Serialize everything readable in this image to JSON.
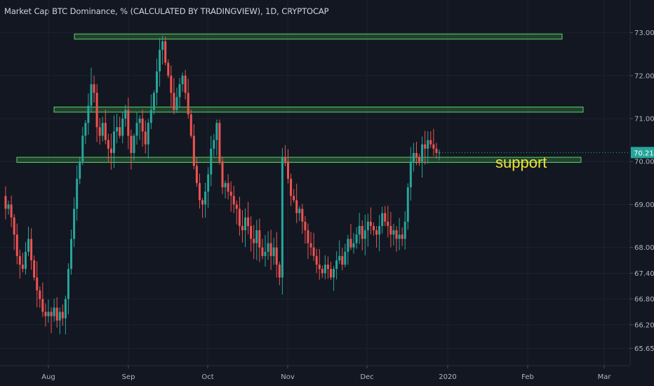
{
  "chart_title": "Market Cap BTC Dominance, % (CALCULATED BY TRADINGVIEW), 1D, CRYPTOCAP",
  "chart_data": {
    "type": "candlestick",
    "title": "Market Cap BTC Dominance, % (CALCULATED BY TRADINGVIEW), 1D, CRYPTOCAP",
    "y_tick_labels": [
      "73.00",
      "72.00",
      "71.00",
      "70.00",
      "69.00",
      "68.00",
      "67.40",
      "66.80",
      "66.20",
      "65.65"
    ],
    "x_tick_labels": [
      "Aug",
      "Sep",
      "Oct",
      "Nov",
      "Dec",
      "2020",
      "Feb",
      "Mar"
    ],
    "current_price": "70.21",
    "ylim": [
      65.55,
      73.45
    ],
    "colors": {
      "up": "#26a69a",
      "down": "#ef5350",
      "zone_fill": "#4caf50",
      "zone_stroke": "#56d364",
      "annotation": "#f0e130",
      "background": "#131722"
    },
    "candles_close": [
      68.9,
      69.0,
      68.7,
      68.3,
      67.8,
      67.6,
      67.5,
      67.9,
      68.2,
      67.7,
      67.3,
      67.0,
      66.8,
      66.5,
      66.4,
      66.5,
      66.4,
      66.6,
      66.3,
      66.5,
      66.35,
      66.8,
      67.5,
      68.2,
      68.9,
      69.6,
      70.0,
      70.6,
      70.9,
      71.3,
      71.8,
      71.6,
      70.8,
      70.6,
      70.9,
      70.5,
      70.3,
      70.2,
      70.7,
      70.8,
      70.6,
      71.0,
      71.2,
      70.6,
      70.2,
      70.6,
      70.9,
      71.0,
      70.7,
      70.4,
      70.9,
      71.2,
      71.6,
      72.1,
      72.6,
      72.8,
      72.3,
      72.0,
      71.6,
      71.2,
      71.5,
      71.8,
      72.0,
      71.6,
      71.1,
      70.6,
      69.9,
      69.5,
      69.1,
      69.0,
      69.3,
      69.7,
      70.3,
      70.5,
      70.9,
      70.0,
      69.4,
      69.5,
      69.3,
      69.2,
      69.0,
      68.9,
      68.5,
      68.4,
      68.7,
      68.5,
      68.2,
      68.1,
      68.4,
      68.0,
      67.8,
      67.9,
      68.1,
      67.8,
      68.0,
      67.6,
      67.3,
      70.1,
      70.0,
      69.6,
      69.2,
      69.1,
      68.8,
      68.9,
      68.6,
      68.4,
      68.1,
      68.0,
      67.8,
      67.6,
      67.5,
      67.4,
      67.6,
      67.5,
      67.3,
      67.5,
      67.7,
      67.8,
      67.6,
      67.9,
      68.2,
      68.0,
      68.1,
      68.3,
      68.5,
      68.2,
      68.4,
      68.6,
      68.5,
      68.4,
      68.3,
      68.5,
      68.8,
      68.6,
      68.5,
      68.3,
      68.4,
      68.2,
      68.3,
      68.2,
      68.6,
      69.4,
      70.0,
      70.2,
      70.1,
      70.0,
      70.4,
      70.3,
      70.5,
      70.4,
      70.3,
      70.2,
      70.21
    ],
    "support_zones": [
      {
        "low": 72.85,
        "high": 72.97
      },
      {
        "low": 71.15,
        "high": 71.27
      },
      {
        "low": 69.98,
        "high": 70.1
      }
    ],
    "annotations": [
      {
        "text": "support"
      }
    ]
  }
}
